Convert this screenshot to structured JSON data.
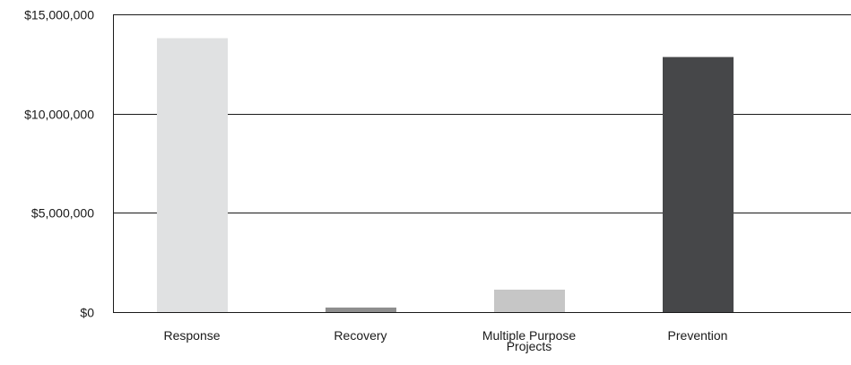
{
  "chart_data": {
    "type": "bar",
    "title": "",
    "xlabel": "",
    "ylabel": "",
    "categories": [
      [
        "Response"
      ],
      [
        "Recovery"
      ],
      [
        "Multiple Purpose",
        "Projects"
      ],
      [
        "Prevention"
      ]
    ],
    "values": [
      13800000,
      230000,
      1130000,
      12850000
    ],
    "colors": [
      "#e0e1e2",
      "#8e8e8e",
      "#c6c6c6",
      "#464749"
    ],
    "ylim": [
      0,
      15000000
    ],
    "yticks": [
      0,
      5000000,
      10000000,
      15000000
    ],
    "ytick_labels": [
      "$0",
      "$5,000,000",
      "$10,000,000",
      "$15,000,000"
    ],
    "grid": true,
    "legend": "none"
  }
}
